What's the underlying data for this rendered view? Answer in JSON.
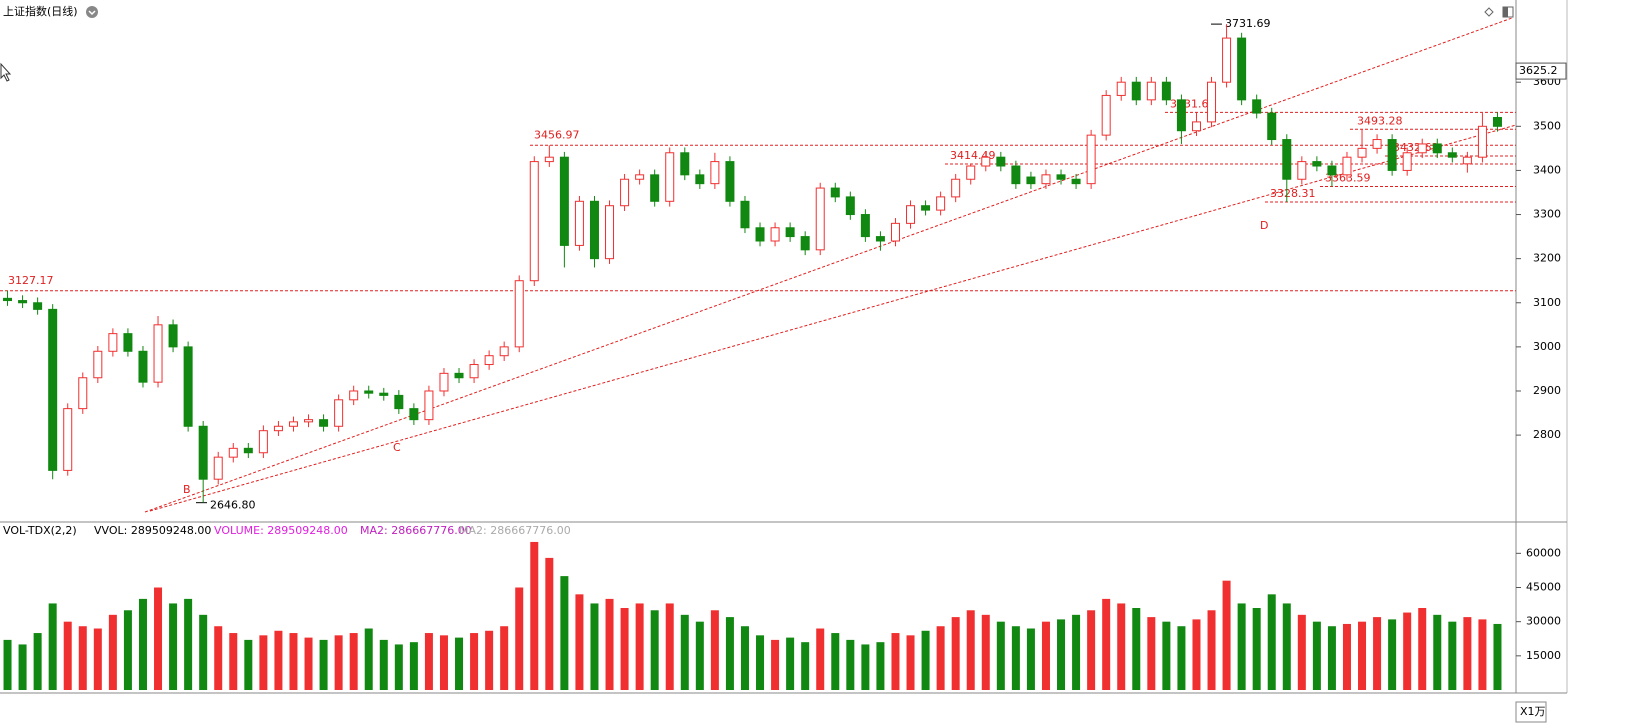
{
  "chart_data": [
    {
      "type": "candlestick",
      "title": "上证指数(日线)",
      "up_color": "#f03030",
      "down_color": "#118811",
      "line_color": "#e02020",
      "ylim": [
        2603,
        3775
      ],
      "yticks": [
        2800,
        2900,
        3000,
        3100,
        3200,
        3300,
        3400,
        3500,
        3600
      ],
      "cursor_price": {
        "value": 3625.2,
        "label": "3625.2"
      },
      "markers": [
        "B",
        "C",
        "D"
      ],
      "annotations": [
        {
          "value": 3731.69,
          "label": "3731.69"
        },
        {
          "value": 3456.97,
          "label": "3456.97"
        },
        {
          "value": 3127.17,
          "label": "3127.17"
        },
        {
          "value": 2646.8,
          "label": "2646.80"
        },
        {
          "value": 3531.6,
          "label": "3531.60"
        },
        {
          "value": 3493.28,
          "label": "3493.28"
        },
        {
          "value": 3414.49,
          "label": "3414.49"
        },
        {
          "value": 3432.63,
          "label": "3432.63"
        },
        {
          "value": 3363.59,
          "label": "3363.59"
        },
        {
          "value": 3328.31,
          "label": "3328.31"
        }
      ],
      "open": [
        3110,
        3105,
        3100,
        3085,
        2720,
        2860,
        2930,
        2990,
        3030,
        2990,
        2920,
        3050,
        3000,
        2820,
        2700,
        2750,
        2770,
        2760,
        2810,
        2820,
        2830,
        2835,
        2820,
        2880,
        2900,
        2895,
        2890,
        2860,
        2835,
        2900,
        2940,
        2930,
        2960,
        2980,
        3000,
        3150,
        3420,
        3430,
        3230,
        3330,
        3200,
        3320,
        3380,
        3390,
        3330,
        3440,
        3390,
        3370,
        3420,
        3330,
        3270,
        3240,
        3270,
        3250,
        3220,
        3360,
        3340,
        3300,
        3250,
        3240,
        3280,
        3320,
        3310,
        3340,
        3380,
        3410,
        3430,
        3410,
        3385,
        3370,
        3390,
        3380,
        3370,
        3480,
        3570,
        3600,
        3560,
        3600,
        3560,
        3490,
        3510,
        3600,
        3700,
        3560,
        3530,
        3470,
        3380,
        3420,
        3410,
        3390,
        3430,
        3450,
        3470,
        3400,
        3440,
        3460,
        3440,
        3415,
        3430,
        3520
      ],
      "high": [
        3127.17,
        3117,
        3112,
        3097,
        2872,
        2942,
        3002,
        3042,
        3042,
        3002,
        3070,
        3062,
        3012,
        2832,
        2762,
        2782,
        2782,
        2822,
        2832,
        2842,
        2847,
        2847,
        2892,
        2912,
        2912,
        2907,
        2902,
        2872,
        2912,
        2952,
        2952,
        2972,
        2992,
        3012,
        3162,
        3432,
        3456.97,
        3442,
        3342,
        3342,
        3332,
        3392,
        3402,
        3402,
        3452,
        3452,
        3402,
        3440,
        3432,
        3342,
        3282,
        3282,
        3282,
        3262,
        3372,
        3372,
        3352,
        3312,
        3262,
        3292,
        3332,
        3332,
        3352,
        3392,
        3414.49,
        3442,
        3442,
        3422,
        3397,
        3402,
        3402,
        3392,
        3492,
        3582,
        3612,
        3612,
        3612,
        3612,
        3572,
        3531.6,
        3612,
        3731.69,
        3712,
        3572,
        3542,
        3482,
        3432,
        3432,
        3422,
        3442,
        3493.28,
        3482,
        3482,
        3452,
        3472,
        3472,
        3452,
        3442,
        3530,
        3532
      ],
      "low": [
        3093,
        3088,
        3073,
        2700,
        2708,
        2848,
        2918,
        2978,
        2978,
        2908,
        2908,
        2988,
        2808,
        2646.8,
        2688,
        2738,
        2748,
        2748,
        2798,
        2808,
        2818,
        2808,
        2808,
        2868,
        2883,
        2878,
        2848,
        2823,
        2823,
        2888,
        2918,
        2918,
        2948,
        2968,
        2988,
        3138,
        3408,
        3180,
        3218,
        3180,
        3188,
        3308,
        3368,
        3318,
        3318,
        3378,
        3358,
        3358,
        3318,
        3258,
        3228,
        3228,
        3238,
        3208,
        3208,
        3328,
        3288,
        3238,
        3218,
        3228,
        3268,
        3298,
        3298,
        3328,
        3368,
        3398,
        3398,
        3358,
        3358,
        3358,
        3368,
        3358,
        3358,
        3468,
        3558,
        3548,
        3548,
        3548,
        3460,
        3478,
        3498,
        3588,
        3548,
        3518,
        3458,
        3328.31,
        3368,
        3398,
        3363.59,
        3378,
        3418,
        3438,
        3388,
        3388,
        3428,
        3428,
        3418,
        3395,
        3418,
        3488
      ],
      "close": [
        3105,
        3100,
        3085,
        2720,
        2860,
        2930,
        2990,
        3030,
        2990,
        2920,
        3050,
        3000,
        2820,
        2700,
        2750,
        2770,
        2760,
        2810,
        2820,
        2830,
        2835,
        2820,
        2880,
        2900,
        2895,
        2890,
        2860,
        2835,
        2900,
        2940,
        2930,
        2960,
        2980,
        3000,
        3150,
        3420,
        3430,
        3230,
        3330,
        3200,
        3320,
        3380,
        3390,
        3330,
        3440,
        3390,
        3370,
        3420,
        3330,
        3270,
        3240,
        3270,
        3250,
        3220,
        3360,
        3340,
        3300,
        3250,
        3240,
        3280,
        3320,
        3310,
        3340,
        3380,
        3410,
        3430,
        3410,
        3370,
        3370,
        3390,
        3380,
        3370,
        3480,
        3570,
        3600,
        3560,
        3600,
        3560,
        3490,
        3510,
        3600,
        3700,
        3560,
        3530,
        3470,
        3380,
        3420,
        3410,
        3390,
        3430,
        3450,
        3470,
        3400,
        3440,
        3460,
        3440,
        3430,
        3430,
        3500,
        3500
      ]
    },
    {
      "type": "bar",
      "title": "VOL-TDX(2,2)",
      "legend": [
        "VVOL: 289509248.00",
        "VOLUME: 289509248.00",
        "MA2: 286667776.00",
        "MA2: 286667776.00"
      ],
      "unit": "X1万",
      "ylim": [
        0,
        72000
      ],
      "yticks": [
        15000,
        30000,
        45000,
        60000
      ],
      "values": [
        22000,
        20000,
        25000,
        38000,
        30000,
        28000,
        27000,
        33000,
        35000,
        40000,
        45000,
        38000,
        40000,
        33000,
        28000,
        25000,
        22000,
        24000,
        26000,
        25000,
        23000,
        22000,
        24000,
        25000,
        27000,
        22000,
        20000,
        21000,
        25000,
        24000,
        23000,
        25000,
        26000,
        28000,
        45000,
        65000,
        58000,
        50000,
        42000,
        38000,
        40000,
        36000,
        38000,
        35000,
        38000,
        33000,
        30000,
        35000,
        32000,
        28000,
        24000,
        22000,
        23000,
        21000,
        27000,
        25000,
        22000,
        20000,
        21000,
        25000,
        24000,
        26000,
        28000,
        32000,
        35000,
        33000,
        30000,
        28000,
        27000,
        30000,
        31000,
        33000,
        35000,
        40000,
        38000,
        36000,
        32000,
        30000,
        28000,
        31000,
        35000,
        48000,
        38000,
        36000,
        42000,
        38000,
        33000,
        30000,
        28000,
        29000,
        30000,
        32000,
        31000,
        34000,
        36000,
        33000,
        30000,
        32000,
        31000,
        29000
      ]
    }
  ]
}
